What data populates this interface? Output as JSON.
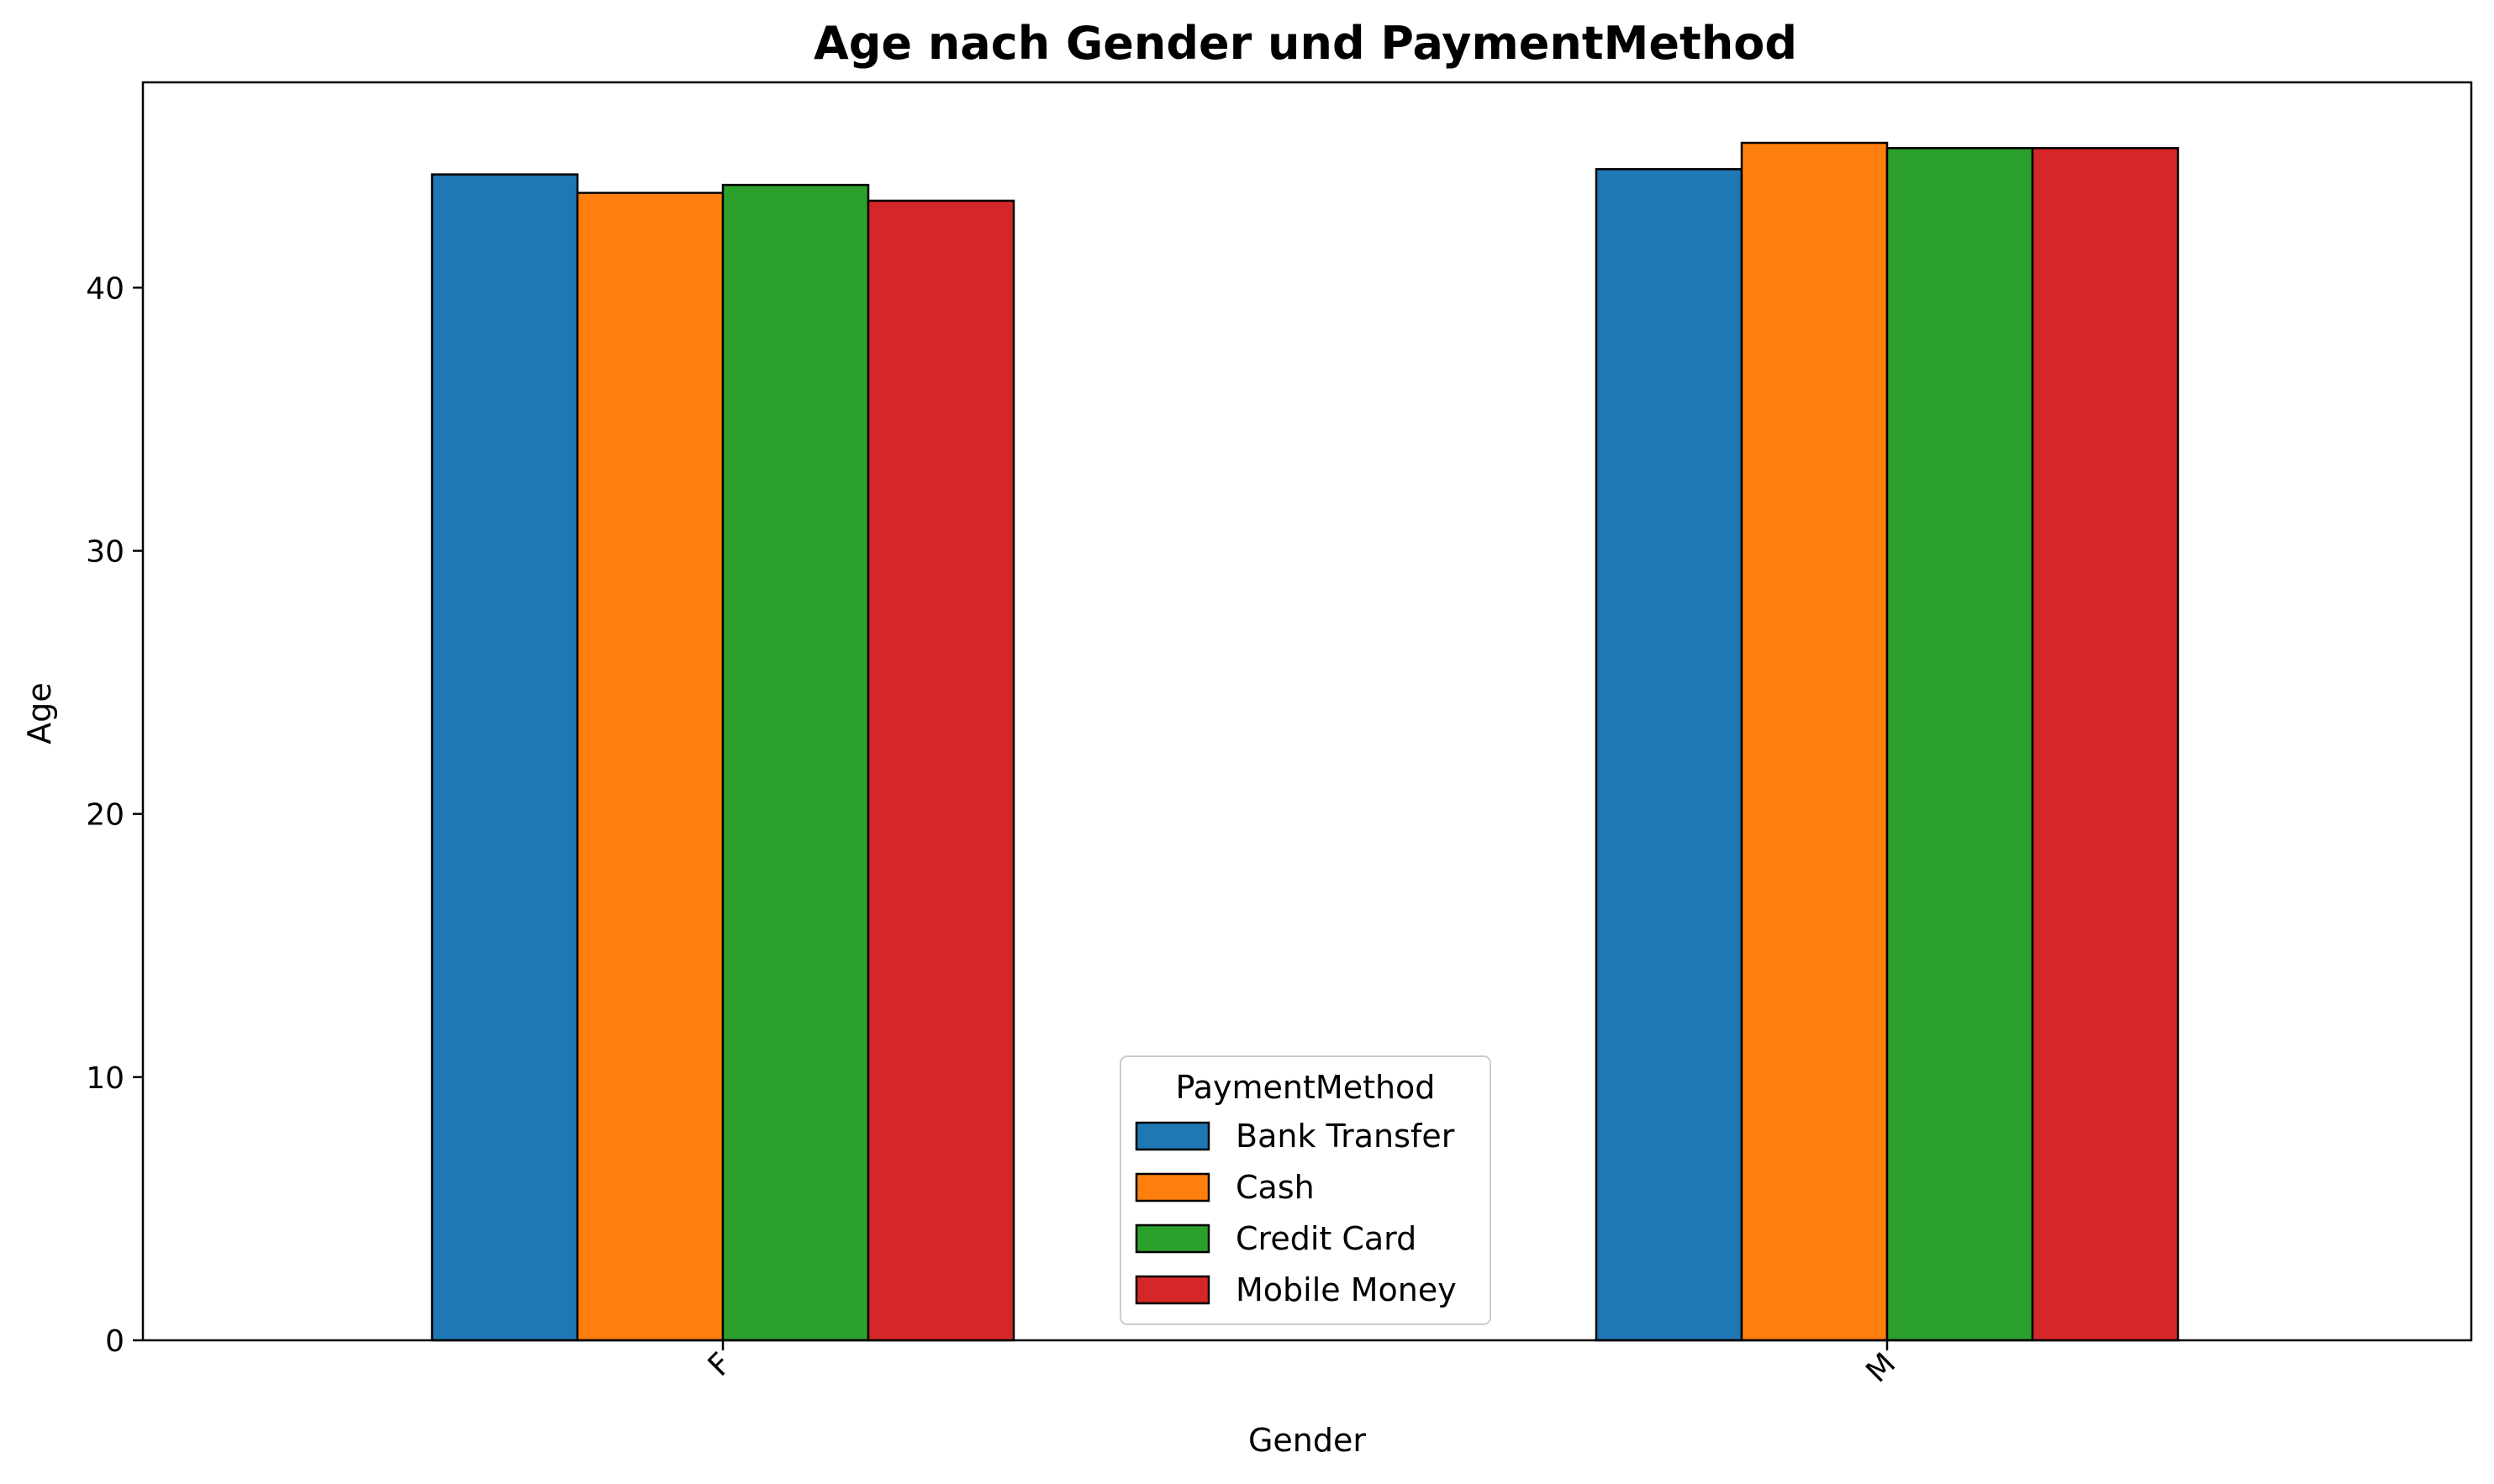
{
  "chart_data": {
    "type": "bar",
    "title": "Age nach Gender und PaymentMethod",
    "xlabel": "Gender",
    "ylabel": "Age",
    "categories": [
      "F",
      "M"
    ],
    "series": [
      {
        "name": "Bank Transfer",
        "values": [
          44.3,
          44.5
        ],
        "color": "#1f77b4"
      },
      {
        "name": "Cash",
        "values": [
          43.6,
          45.5
        ],
        "color": "#ff7f0e"
      },
      {
        "name": "Credit Card",
        "values": [
          43.9,
          45.3
        ],
        "color": "#2ca02c"
      },
      {
        "name": "Mobile Money",
        "values": [
          43.3,
          45.3
        ],
        "color": "#d62728"
      }
    ],
    "ylim": [
      0,
      47.8
    ],
    "yticks": [
      0,
      10,
      20,
      30,
      40
    ],
    "ytick_labels": [
      "0",
      "10",
      "20",
      "30",
      "40"
    ],
    "grid": false,
    "legend": {
      "title": "PaymentMethod",
      "placement": "lower-center"
    },
    "edge_color": "#000000"
  }
}
